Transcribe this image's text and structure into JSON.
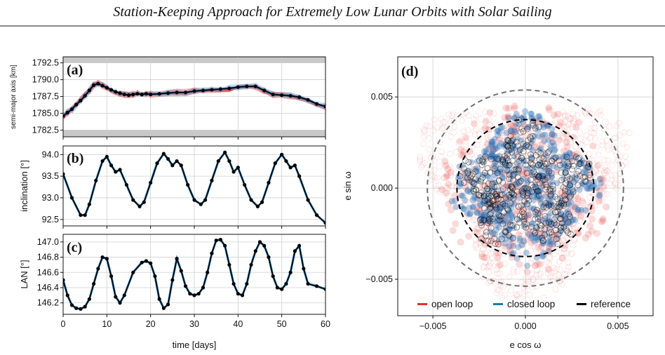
{
  "header": {
    "title": "Station-Keeping Approach for Extremely Low Lunar Orbits with Solar Sailing"
  },
  "colors": {
    "open_loop": "#e8312a",
    "closed_loop": "#1f77b4",
    "reference": "#000000",
    "band": "#c8c8c8",
    "grid": "#d0d0d0"
  },
  "chart_data": [
    {
      "id": "a",
      "panel_label": "(a)",
      "type": "line",
      "ylabel": "semi-major axis [km]",
      "xlim": [
        0,
        60
      ],
      "ylim": [
        1781.5,
        1793.4
      ],
      "yticks": [
        "1782.5",
        "1785.0",
        "1787.5",
        "1790.0",
        "1792.5"
      ],
      "bands": [
        [
          1781.5,
          1782.5
        ],
        [
          1792.5,
          1793.4
        ]
      ],
      "series": [
        {
          "name": "reference",
          "x": [
            0,
            1,
            2,
            3,
            4,
            5,
            6,
            7,
            8,
            9,
            10,
            11,
            12,
            13,
            14,
            15,
            16,
            17,
            18,
            19,
            20,
            22,
            24,
            26,
            28,
            30,
            32,
            34,
            36,
            38,
            40,
            42,
            44,
            46,
            48,
            50,
            52,
            54,
            56,
            58,
            60
          ],
          "y": [
            1784.6,
            1785.1,
            1785.6,
            1786.3,
            1786.9,
            1787.6,
            1788.4,
            1789.2,
            1789.4,
            1789.1,
            1788.8,
            1788.5,
            1788.2,
            1788.0,
            1787.8,
            1787.7,
            1787.8,
            1787.9,
            1787.8,
            1787.9,
            1787.8,
            1787.9,
            1788.0,
            1788.1,
            1788.1,
            1788.3,
            1788.4,
            1788.5,
            1788.6,
            1788.7,
            1788.9,
            1789.0,
            1789.0,
            1788.4,
            1787.8,
            1787.7,
            1787.6,
            1787.4,
            1787.0,
            1786.4,
            1786.0
          ]
        }
      ]
    },
    {
      "id": "b",
      "panel_label": "(b)",
      "type": "line",
      "ylabel": "inclination [°]",
      "xlim": [
        0,
        60
      ],
      "ylim": [
        92.35,
        94.2
      ],
      "yticks": [
        "92.5",
        "93.0",
        "93.5",
        "94.0"
      ],
      "series": [
        {
          "name": "reference",
          "x": [
            0,
            2,
            4,
            5,
            6,
            7.5,
            9,
            10,
            11,
            12,
            13,
            14.5,
            16,
            17.5,
            18.5,
            20,
            21.5,
            23,
            24,
            25,
            26,
            27,
            28.5,
            30,
            31.5,
            32.5,
            34,
            35.5,
            37,
            38,
            39,
            40,
            41.5,
            43,
            44.5,
            45.5,
            47,
            48.5,
            50,
            51,
            52,
            53,
            54,
            56,
            58,
            60
          ],
          "y": [
            93.55,
            93.0,
            92.6,
            92.6,
            92.85,
            93.4,
            93.85,
            93.95,
            93.75,
            93.6,
            93.65,
            93.3,
            92.95,
            92.8,
            92.9,
            93.35,
            93.8,
            94.02,
            93.9,
            93.75,
            93.85,
            93.75,
            93.3,
            92.95,
            92.85,
            92.95,
            93.4,
            93.85,
            94.05,
            93.85,
            93.6,
            93.7,
            93.3,
            92.95,
            92.8,
            92.9,
            93.35,
            93.8,
            94.0,
            93.85,
            93.7,
            93.75,
            93.5,
            92.95,
            92.6,
            92.42
          ]
        }
      ]
    },
    {
      "id": "c",
      "panel_label": "(c)",
      "type": "line",
      "ylabel": "LAN [°]",
      "xlabel": "time [days]",
      "xlim": [
        0,
        60
      ],
      "xticks": [
        "0",
        "10",
        "20",
        "30",
        "40",
        "50",
        "60"
      ],
      "ylim": [
        146.05,
        147.1
      ],
      "yticks": [
        "146.2",
        "146.4",
        "146.6",
        "146.8",
        "147.0"
      ],
      "series": [
        {
          "name": "reference",
          "x": [
            0,
            1,
            2,
            3,
            4,
            5,
            6,
            7,
            8,
            9,
            10,
            11,
            12,
            13,
            14,
            16,
            18,
            19,
            20,
            21,
            22,
            23,
            24,
            25,
            26,
            27,
            28,
            29,
            30,
            31,
            32,
            33,
            34,
            35,
            36,
            37,
            38,
            39,
            40,
            41,
            42,
            43,
            44,
            45,
            46,
            47,
            48,
            49,
            50,
            51,
            52,
            53,
            54,
            55,
            56,
            58,
            60
          ],
          "y": [
            146.5,
            146.3,
            146.17,
            146.13,
            146.12,
            146.15,
            146.25,
            146.45,
            146.65,
            146.8,
            146.78,
            146.55,
            146.28,
            146.2,
            146.3,
            146.6,
            146.73,
            146.75,
            146.72,
            146.55,
            146.25,
            146.13,
            146.18,
            146.5,
            146.78,
            146.62,
            146.42,
            146.32,
            146.3,
            146.32,
            146.4,
            146.6,
            146.85,
            147.02,
            147.03,
            146.95,
            146.7,
            146.45,
            146.32,
            146.3,
            146.45,
            146.7,
            146.88,
            147.0,
            146.95,
            146.8,
            146.55,
            146.4,
            146.38,
            146.45,
            146.6,
            146.88,
            146.95,
            146.65,
            146.45,
            146.42,
            146.38
          ]
        }
      ]
    },
    {
      "id": "d",
      "panel_label": "(d)",
      "type": "scatter",
      "xlabel": "e cos ω",
      "ylabel": "e sin ω",
      "xlim": [
        -0.0069,
        0.0069
      ],
      "ylim": [
        -0.007,
        0.0072
      ],
      "xticks": [
        "−0.005",
        "0.000",
        "0.005"
      ],
      "yticks": [
        "−0.005",
        "0.000",
        "0.005"
      ],
      "circles": [
        {
          "name": "outer-dashed-circle",
          "radius": 0.0053,
          "color": "#707070"
        },
        {
          "name": "inner-dashed-circle",
          "radius": 0.0037,
          "color": "#000000"
        }
      ],
      "legend": [
        "open loop",
        "closed loop",
        "reference"
      ],
      "legend_position": "bottom"
    }
  ]
}
